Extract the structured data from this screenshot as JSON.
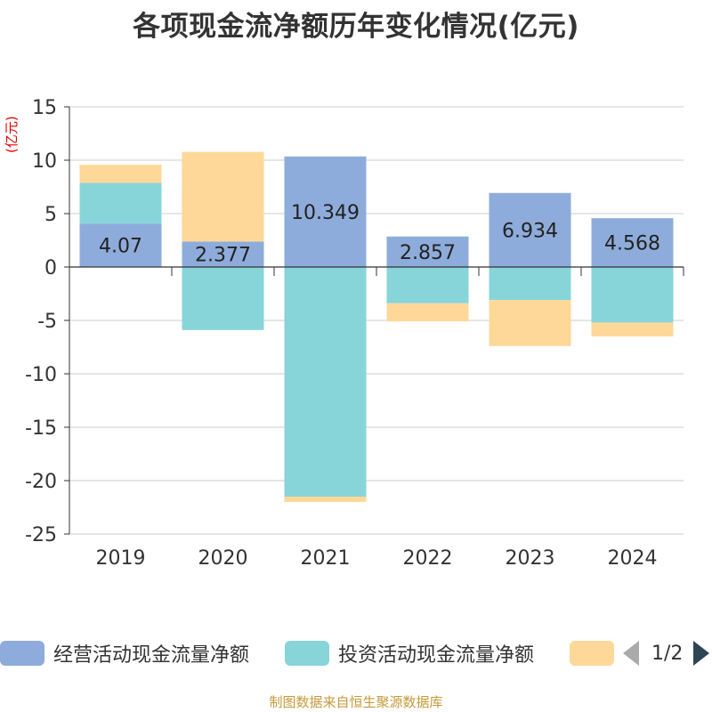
{
  "title": "各项现金流净额历年变化情况(亿元)",
  "unit_label": "(亿元)",
  "source": "制图数据来自恒生聚源数据库",
  "legend": {
    "items": [
      {
        "label": "经营活动现金流量净额",
        "color": "#8eacdb"
      },
      {
        "label": "投资活动现金流量净额",
        "color": "#87d5d8"
      },
      {
        "label": "",
        "color": "#fed899"
      }
    ],
    "page": "1/2"
  },
  "chart_data": {
    "type": "bar",
    "stacked": true,
    "categories": [
      "2019",
      "2020",
      "2021",
      "2022",
      "2023",
      "2024"
    ],
    "ylim": [
      -25,
      15
    ],
    "yticks": [
      15,
      10,
      5,
      0,
      -5,
      -10,
      -15,
      -20,
      -25
    ],
    "grid": true,
    "series": [
      {
        "name": "经营活动现金流量净额",
        "color": "#8eacdb",
        "values": [
          4.07,
          2.377,
          10.349,
          2.857,
          6.934,
          4.568
        ],
        "labels": [
          "4.07",
          "2.377",
          "10.349",
          "2.857",
          "6.934",
          "4.568"
        ]
      },
      {
        "name": "投资活动现金流量净额",
        "color": "#87d5d8",
        "values": [
          3.8,
          -5.9,
          -21.5,
          -3.4,
          -3.1,
          -5.2
        ]
      },
      {
        "color": "#fed899",
        "values": [
          1.7,
          8.4,
          -0.5,
          -1.7,
          -4.3,
          -1.3
        ]
      }
    ]
  }
}
